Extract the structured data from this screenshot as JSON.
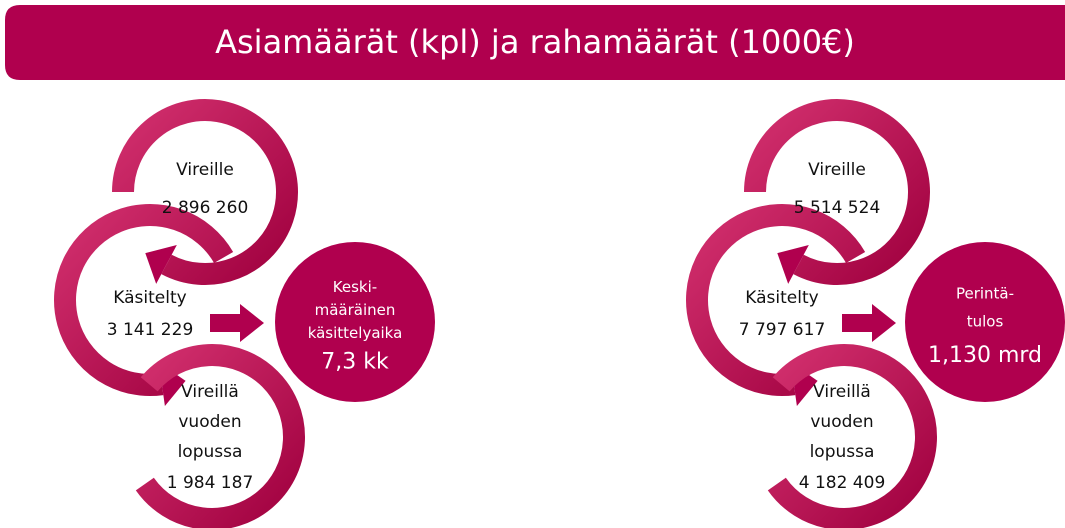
{
  "header": {
    "title": "Asiamäärät (kpl) ja rahamäärät (1000€)"
  },
  "panels": [
    {
      "items": [
        {
          "label": [
            "Vireille"
          ],
          "value": "2 896 260"
        },
        {
          "label": [
            "Käsitelty"
          ],
          "value": "3 141 229"
        },
        {
          "label": [
            "Vireillä",
            "vuoden",
            "lopussa"
          ],
          "value": "1 984 187"
        }
      ],
      "result": [
        "Keski-",
        "määräinen",
        "käsittelyaika",
        "7,3 kk"
      ]
    },
    {
      "items": [
        {
          "label": [
            "Vireille"
          ],
          "value": "5 514 524"
        },
        {
          "label": [
            "Käsitelty"
          ],
          "value": "7 797 617"
        },
        {
          "label": [
            "Vireillä",
            "vuoden",
            "lopussa"
          ],
          "value": "4 182 409"
        }
      ],
      "result": [
        "Perintä-",
        "tulos",
        "1,130 mrd"
      ]
    }
  ]
}
